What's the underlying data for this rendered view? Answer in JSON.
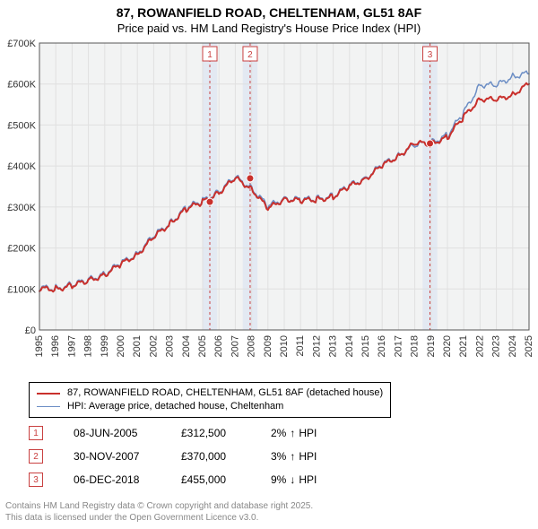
{
  "title_line1": "87, ROWANFIELD ROAD, CHELTENHAM, GL51 8AF",
  "title_line2": "Price paid vs. HM Land Registry's House Price Index (HPI)",
  "chart": {
    "type": "line",
    "background_color": "#f7f7f7",
    "plot_inner_bg": "#f2f3f3",
    "grid_color": "#e0e0e0",
    "axis_color": "#555555",
    "tick_font_size": 11,
    "y": {
      "min": 0,
      "max": 700000,
      "step": 100000,
      "labels": [
        "£0",
        "£100K",
        "£200K",
        "£300K",
        "£400K",
        "£500K",
        "£600K",
        "£700K"
      ]
    },
    "x": {
      "min": 1995,
      "max": 2025,
      "step": 1,
      "labels": [
        "1995",
        "1996",
        "1997",
        "1998",
        "1999",
        "2000",
        "2001",
        "2002",
        "2003",
        "2004",
        "2005",
        "2006",
        "2007",
        "2008",
        "2009",
        "2010",
        "2011",
        "2012",
        "2013",
        "2014",
        "2015",
        "2016",
        "2017",
        "2018",
        "2019",
        "2020",
        "2021",
        "2022",
        "2023",
        "2024",
        "2025"
      ]
    },
    "event_band_color": "#e1e8f2",
    "event_line_color": "#c94040",
    "event_badge_border": "#c94040",
    "event_badge_text": "#c94040",
    "series": [
      {
        "id": "subject",
        "label": "87, ROWANFIELD ROAD, CHELTENHAM, GL51 8AF (detached house)",
        "color": "#c9302c",
        "width": 2,
        "data_yearly": [
          [
            1995,
            100000
          ],
          [
            1996,
            100000
          ],
          [
            1997,
            108000
          ],
          [
            1998,
            120000
          ],
          [
            1999,
            135000
          ],
          [
            2000,
            160000
          ],
          [
            2001,
            185000
          ],
          [
            2002,
            225000
          ],
          [
            2003,
            260000
          ],
          [
            2004,
            295000
          ],
          [
            2005,
            312500
          ],
          [
            2006,
            335000
          ],
          [
            2007,
            370000
          ],
          [
            2008,
            345000
          ],
          [
            2009,
            295000
          ],
          [
            2010,
            320000
          ],
          [
            2011,
            315000
          ],
          [
            2012,
            318000
          ],
          [
            2013,
            325000
          ],
          [
            2014,
            350000
          ],
          [
            2015,
            370000
          ],
          [
            2016,
            400000
          ],
          [
            2017,
            425000
          ],
          [
            2018,
            455000
          ],
          [
            2019,
            455000
          ],
          [
            2020,
            470000
          ],
          [
            2021,
            520000
          ],
          [
            2022,
            565000
          ],
          [
            2023,
            560000
          ],
          [
            2024,
            575000
          ],
          [
            2025,
            600000
          ]
        ]
      },
      {
        "id": "hpi",
        "label": "HPI: Average price, detached house, Cheltenham",
        "color": "#6c8ec5",
        "width": 1.5,
        "data_yearly": [
          [
            1995,
            102000
          ],
          [
            1996,
            102000
          ],
          [
            1997,
            110000
          ],
          [
            1998,
            122000
          ],
          [
            1999,
            138000
          ],
          [
            2000,
            162000
          ],
          [
            2001,
            188000
          ],
          [
            2002,
            228000
          ],
          [
            2003,
            262000
          ],
          [
            2004,
            298000
          ],
          [
            2005,
            315000
          ],
          [
            2006,
            338000
          ],
          [
            2007,
            372000
          ],
          [
            2008,
            348000
          ],
          [
            2009,
            300000
          ],
          [
            2010,
            322000
          ],
          [
            2011,
            317000
          ],
          [
            2012,
            320000
          ],
          [
            2013,
            327000
          ],
          [
            2014,
            352000
          ],
          [
            2015,
            372000
          ],
          [
            2016,
            402000
          ],
          [
            2017,
            427000
          ],
          [
            2018,
            450000
          ],
          [
            2019,
            458000
          ],
          [
            2020,
            475000
          ],
          [
            2021,
            530000
          ],
          [
            2022,
            600000
          ],
          [
            2023,
            595000
          ],
          [
            2024,
            620000
          ],
          [
            2025,
            625000
          ]
        ]
      }
    ],
    "event_markers": [
      {
        "year": 2005.44,
        "price": 312500
      },
      {
        "year": 2007.91,
        "price": 370000
      },
      {
        "year": 2018.93,
        "price": 455000
      }
    ]
  },
  "legend": {
    "rows": [
      {
        "color": "#c9302c",
        "width": 2,
        "label": "87, ROWANFIELD ROAD, CHELTENHAM, GL51 8AF (detached house)"
      },
      {
        "color": "#6c8ec5",
        "width": 1.5,
        "label": "HPI: Average price, detached house, Cheltenham"
      }
    ]
  },
  "events_table": {
    "rows": [
      {
        "num": "1",
        "date": "08-JUN-2005",
        "price": "£312,500",
        "pct": "2%",
        "arrow": "↑",
        "tag": "HPI"
      },
      {
        "num": "2",
        "date": "30-NOV-2007",
        "price": "£370,000",
        "pct": "3%",
        "arrow": "↑",
        "tag": "HPI"
      },
      {
        "num": "3",
        "date": "06-DEC-2018",
        "price": "£455,000",
        "pct": "9%",
        "arrow": "↓",
        "tag": "HPI"
      }
    ],
    "badge_border": "#c94040",
    "badge_text": "#c94040"
  },
  "footer": {
    "line1": "Contains HM Land Registry data © Crown copyright and database right 2025.",
    "line2": "This data is licensed under the Open Government Licence v3.0."
  }
}
